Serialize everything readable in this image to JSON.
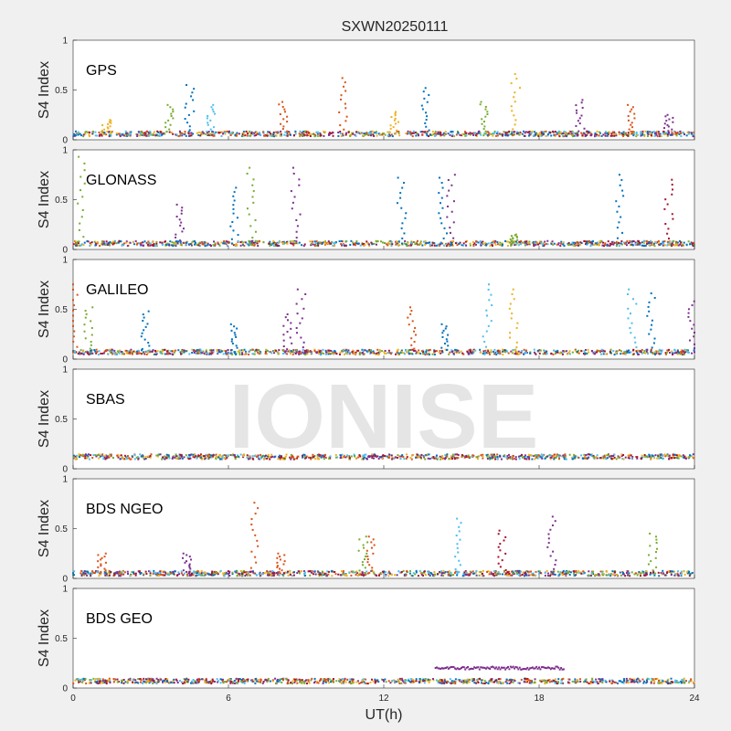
{
  "title": "SXWN20250111",
  "watermark": "IONISE",
  "chart_data": [
    {
      "type": "scatter",
      "panel_label": "GPS",
      "ylabel": "S4 Index",
      "xlabel": "",
      "xlim": [
        0,
        24
      ],
      "ylim": [
        0,
        1
      ],
      "yticks": [
        "0",
        "0.5",
        "1"
      ],
      "baseline": 0.06,
      "peaks": [
        {
          "x": 1.3,
          "y": 0.2,
          "c": "#EDB120"
        },
        {
          "x": 3.7,
          "y": 0.35,
          "c": "#77AC30"
        },
        {
          "x": 4.5,
          "y": 0.55,
          "c": "#0072BD"
        },
        {
          "x": 5.3,
          "y": 0.35,
          "c": "#4DBEEE"
        },
        {
          "x": 8.1,
          "y": 0.38,
          "c": "#D95319"
        },
        {
          "x": 10.4,
          "y": 0.62,
          "c": "#D95319"
        },
        {
          "x": 12.4,
          "y": 0.28,
          "c": "#EDB120"
        },
        {
          "x": 13.6,
          "y": 0.52,
          "c": "#0072BD"
        },
        {
          "x": 15.9,
          "y": 0.38,
          "c": "#77AC30"
        },
        {
          "x": 17.1,
          "y": 0.66,
          "c": "#EDB120"
        },
        {
          "x": 19.6,
          "y": 0.4,
          "c": "#7E2F8E"
        },
        {
          "x": 21.6,
          "y": 0.35,
          "c": "#D95319"
        },
        {
          "x": 23.0,
          "y": 0.25,
          "c": "#7E2F8E"
        }
      ]
    },
    {
      "type": "scatter",
      "panel_label": "GLONASS",
      "ylabel": "S4 Index",
      "xlabel": "",
      "xlim": [
        0,
        24
      ],
      "ylim": [
        0,
        1
      ],
      "yticks": [
        "0",
        "0.5",
        "1"
      ],
      "baseline": 0.06,
      "peaks": [
        {
          "x": 0.3,
          "y": 0.93,
          "c": "#77AC30"
        },
        {
          "x": 4.1,
          "y": 0.45,
          "c": "#7E2F8E"
        },
        {
          "x": 6.2,
          "y": 0.62,
          "c": "#0072BD"
        },
        {
          "x": 6.9,
          "y": 0.82,
          "c": "#77AC30"
        },
        {
          "x": 8.6,
          "y": 0.82,
          "c": "#7E2F8E"
        },
        {
          "x": 12.7,
          "y": 0.72,
          "c": "#0072BD"
        },
        {
          "x": 14.3,
          "y": 0.72,
          "c": "#0072BD"
        },
        {
          "x": 14.6,
          "y": 0.75,
          "c": "#7E2F8E"
        },
        {
          "x": 21.1,
          "y": 0.75,
          "c": "#0072BD"
        },
        {
          "x": 23.0,
          "y": 0.7,
          "c": "#A2142F"
        },
        {
          "x": 17.0,
          "y": 0.15,
          "c": "#77AC30"
        }
      ]
    },
    {
      "type": "scatter",
      "panel_label": "GALILEO",
      "ylabel": "S4 Index",
      "xlabel": "",
      "xlim": [
        0,
        24
      ],
      "ylim": [
        0,
        1
      ],
      "yticks": [
        "0",
        "0.5",
        "1"
      ],
      "baseline": 0.07,
      "peaks": [
        {
          "x": 0.0,
          "y": 0.75,
          "c": "#D95319"
        },
        {
          "x": 0.6,
          "y": 0.52,
          "c": "#77AC30"
        },
        {
          "x": 2.8,
          "y": 0.48,
          "c": "#0072BD"
        },
        {
          "x": 6.2,
          "y": 0.35,
          "c": "#0072BD"
        },
        {
          "x": 8.3,
          "y": 0.45,
          "c": "#7E2F8E"
        },
        {
          "x": 8.8,
          "y": 0.7,
          "c": "#7E2F8E"
        },
        {
          "x": 13.1,
          "y": 0.52,
          "c": "#D95319"
        },
        {
          "x": 14.4,
          "y": 0.35,
          "c": "#0072BD"
        },
        {
          "x": 16.0,
          "y": 0.75,
          "c": "#4DBEEE"
        },
        {
          "x": 17.0,
          "y": 0.7,
          "c": "#EDB120"
        },
        {
          "x": 21.6,
          "y": 0.7,
          "c": "#4DBEEE"
        },
        {
          "x": 22.3,
          "y": 0.66,
          "c": "#0072BD"
        },
        {
          "x": 23.9,
          "y": 0.58,
          "c": "#7E2F8E"
        }
      ]
    },
    {
      "type": "scatter",
      "panel_label": "SBAS",
      "ylabel": "S4 Index",
      "xlabel": "",
      "xlim": [
        0,
        24
      ],
      "ylim": [
        0,
        1
      ],
      "yticks": [
        "0",
        "0.5",
        "1"
      ],
      "baseline": 0.12,
      "peaks": []
    },
    {
      "type": "scatter",
      "panel_label": "BDS NGEO",
      "ylabel": "S4 Index",
      "xlabel": "",
      "xlim": [
        0,
        24
      ],
      "ylim": [
        0,
        1
      ],
      "yticks": [
        "0",
        "0.5",
        "1"
      ],
      "baseline": 0.05,
      "peaks": [
        {
          "x": 1.1,
          "y": 0.25,
          "c": "#D95319"
        },
        {
          "x": 4.4,
          "y": 0.25,
          "c": "#7E2F8E"
        },
        {
          "x": 7.0,
          "y": 0.76,
          "c": "#D95319"
        },
        {
          "x": 8.0,
          "y": 0.25,
          "c": "#D95319"
        },
        {
          "x": 11.2,
          "y": 0.42,
          "c": "#77AC30"
        },
        {
          "x": 11.5,
          "y": 0.42,
          "c": "#D95319"
        },
        {
          "x": 14.9,
          "y": 0.6,
          "c": "#4DBEEE"
        },
        {
          "x": 16.6,
          "y": 0.48,
          "c": "#A2142F"
        },
        {
          "x": 18.5,
          "y": 0.62,
          "c": "#7E2F8E"
        },
        {
          "x": 22.4,
          "y": 0.45,
          "c": "#77AC30"
        }
      ]
    },
    {
      "type": "scatter",
      "panel_label": "BDS GEO",
      "ylabel": "S4 Index",
      "xlabel": "UT(h)",
      "xlim": [
        0,
        24
      ],
      "ylim": [
        0,
        1
      ],
      "yticks": [
        "0",
        "0.5",
        "1"
      ],
      "baseline": 0.07,
      "xticks": [
        "0",
        "6",
        "12",
        "18",
        "24"
      ],
      "segment": {
        "x0": 14.0,
        "x1": 19.0,
        "y": 0.2,
        "c": "#7E2F8E"
      },
      "peaks": []
    }
  ],
  "colors": [
    "#0072BD",
    "#D95319",
    "#EDB120",
    "#7E2F8E",
    "#77AC30",
    "#4DBEEE",
    "#A2142F"
  ]
}
